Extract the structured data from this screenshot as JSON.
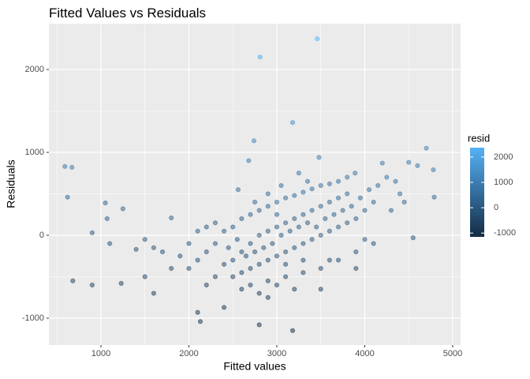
{
  "chart_data": {
    "type": "scatter",
    "title": "Fitted Values vs Residuals",
    "x_label": "Fitted values",
    "y_label": "Residuals",
    "xlim": [
      408,
      5090
    ],
    "ylim": [
      -1324,
      2552
    ],
    "xticks": [
      1000,
      2000,
      3000,
      4000,
      5000
    ],
    "yticks": [
      -1000,
      0,
      1000,
      2000
    ],
    "x_minor_ticks": [
      500,
      1500,
      2500,
      3500,
      4500
    ],
    "y_minor_ticks": [
      -500,
      500,
      1500
    ],
    "grid": true,
    "point_opacity": 0.5,
    "colorbar": {
      "title": "resid",
      "low": "#132B43",
      "high": "#56B1F7",
      "limits": [
        -1150,
        2370
      ],
      "ticks": [
        -1000,
        0,
        1000,
        2000
      ]
    },
    "x": [
      3460,
      2810,
      3180,
      2740,
      3480,
      4700,
      590,
      670,
      620,
      680,
      900,
      1230,
      2100,
      2130,
      2800,
      3180,
      2680,
      4780,
      4600,
      4790,
      1050,
      1070,
      1250,
      900,
      1100,
      1400,
      1500,
      1600,
      1800,
      4200,
      4500,
      4000,
      4300,
      4550,
      3890,
      2560,
      2200,
      2400,
      2900,
      3500,
      2500,
      2600,
      2700,
      2800,
      2900,
      3000,
      3100,
      3200,
      3300,
      3400,
      3500,
      3600,
      3700,
      3800,
      2500,
      2600,
      2700,
      2800,
      2900,
      3000,
      3100,
      3200,
      3300,
      3400,
      3500,
      3600,
      3700,
      3800,
      2500,
      2600,
      2700,
      2800,
      2900,
      3000,
      3100,
      3200,
      3300,
      3400,
      3500,
      3600,
      3700,
      3800,
      3900,
      4000,
      4100,
      2300,
      2200,
      2100,
      2000,
      2000,
      1900,
      2300,
      2400,
      2400,
      2300,
      2200,
      2100,
      1700,
      1800,
      1600,
      1500,
      2700,
      2900,
      3100,
      3300,
      3500,
      3700,
      3900,
      4100,
      3000,
      3200,
      2800,
      2600,
      3050,
      3150,
      3250,
      3350,
      2950,
      2850,
      2750,
      2650,
      3450,
      3550,
      3650,
      3750,
      3850,
      3950,
      4050,
      4150,
      4250,
      4350,
      4400,
      4450,
      3900,
      3600,
      2450,
      2550,
      3100,
      3300,
      3000,
      2750,
      3350,
      3250,
      3050,
      2900
    ],
    "values": [
      2370,
      2150,
      1360,
      1140,
      940,
      1050,
      830,
      820,
      460,
      -550,
      -600,
      -580,
      -930,
      -1040,
      -1080,
      -1150,
      900,
      790,
      840,
      460,
      390,
      200,
      320,
      30,
      -100,
      -170,
      -500,
      -700,
      210,
      870,
      880,
      -50,
      300,
      -30,
      750,
      550,
      -600,
      -870,
      -750,
      -650,
      -300,
      -200,
      -100,
      0,
      50,
      100,
      150,
      200,
      250,
      300,
      350,
      400,
      450,
      500,
      100,
      200,
      250,
      300,
      350,
      400,
      450,
      480,
      520,
      560,
      600,
      620,
      650,
      700,
      -500,
      -450,
      -400,
      -350,
      -300,
      -250,
      -200,
      -150,
      -100,
      -50,
      0,
      50,
      100,
      150,
      200,
      300,
      400,
      -100,
      -200,
      -300,
      -100,
      -400,
      -250,
      -500,
      -350,
      50,
      150,
      100,
      50,
      -200,
      -400,
      -150,
      -50,
      -600,
      -550,
      -500,
      -450,
      -400,
      -300,
      -200,
      -100,
      -600,
      -650,
      -700,
      -650,
      0,
      50,
      100,
      150,
      -100,
      -150,
      -200,
      -250,
      100,
      200,
      250,
      300,
      350,
      450,
      550,
      600,
      700,
      650,
      500,
      400,
      -400,
      -300,
      -150,
      -50,
      -350,
      -300,
      250,
      400,
      650,
      750,
      600,
      500
    ]
  }
}
